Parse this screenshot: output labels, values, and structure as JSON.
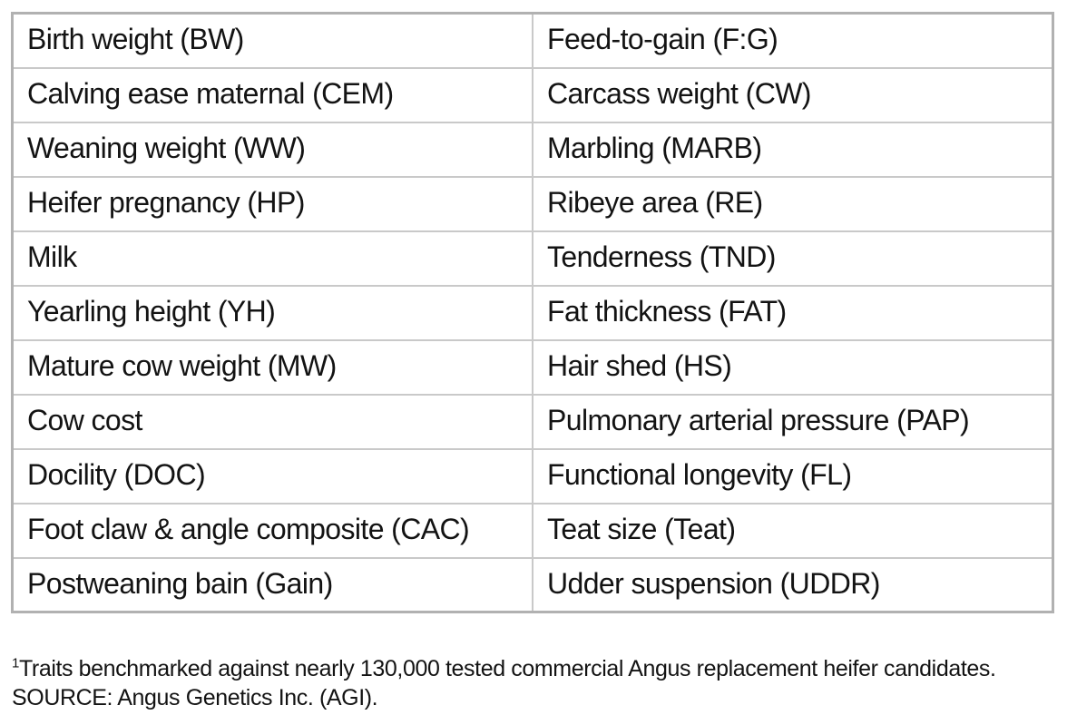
{
  "table": {
    "rows": [
      {
        "left": "Birth weight (BW)",
        "right": "Feed-to-gain (F:G)"
      },
      {
        "left": "Calving ease maternal (CEM)",
        "right": "Carcass weight (CW)"
      },
      {
        "left": "Weaning weight (WW)",
        "right": "Marbling (MARB)"
      },
      {
        "left": "Heifer pregnancy (HP)",
        "right": "Ribeye area (RE)"
      },
      {
        "left": "Milk",
        "right": "Tenderness (TND)"
      },
      {
        "left": "Yearling height (YH)",
        "right": "Fat thickness (FAT)"
      },
      {
        "left": "Mature cow weight (MW)",
        "right": "Hair shed (HS)"
      },
      {
        "left": "Cow cost",
        "right": "Pulmonary arterial pressure (PAP)"
      },
      {
        "left": "Docility (DOC)",
        "right": "Functional longevity (FL)"
      },
      {
        "left": "Foot claw & angle composite (CAC)",
        "right": "Teat size (Teat)"
      },
      {
        "left": "Postweaning bain (Gain)",
        "right": "Udder suspension (UDDR)"
      }
    ]
  },
  "footnote": {
    "superscript": "1",
    "line1": "Traits benchmarked against nearly 130,000 tested commercial Angus replacement heifer candidates.",
    "line2": "SOURCE: Angus Genetics Inc. (AGI)."
  },
  "colors": {
    "outer_border": "#b1b1b1",
    "inner_border": "#c9c9c9",
    "text": "#131313",
    "background": "#ffffff"
  }
}
